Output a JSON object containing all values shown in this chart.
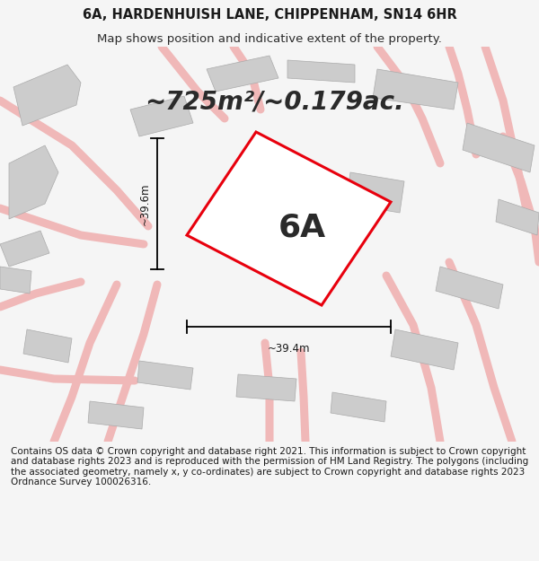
{
  "title_line1": "6A, HARDENHUISH LANE, CHIPPENHAM, SN14 6HR",
  "title_line2": "Map shows position and indicative extent of the property.",
  "area_label": "~725m²/~0.179ac.",
  "plot_label": "6A",
  "dim_vertical": "~39.6m",
  "dim_horizontal": "~39.4m",
  "footer_text": "Contains OS data © Crown copyright and database right 2021. This information is subject to Crown copyright and database rights 2023 and is reproduced with the permission of HM Land Registry. The polygons (including the associated geometry, namely x, y co-ordinates) are subject to Crown copyright and database rights 2023 Ordnance Survey 100026316.",
  "bg_color": "#f5f5f5",
  "map_bg": "#ffffff",
  "plot_color_edge": "#e8000d",
  "street_color": "#f0b8b8",
  "building_color": "#cccccc",
  "building_edge": "#aaaaaa",
  "title_fontsize": 10.5,
  "subtitle_fontsize": 9.5,
  "area_fontsize": 20,
  "plot_label_fontsize": 26,
  "dim_fontsize": 8.5,
  "footer_fontsize": 7.5,
  "map_border_color": "#cccccc"
}
